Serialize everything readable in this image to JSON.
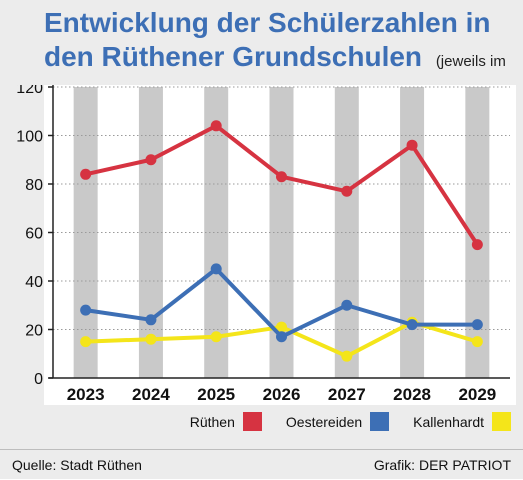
{
  "title": "Entwicklung der Schülerzahlen in den Rüthener Grundschulen",
  "subtitle": "(jeweils im August)",
  "footer": {
    "source": "Quelle: Stadt Rüthen",
    "credit": "Grafik: DER PATRIOT"
  },
  "chart_data": {
    "type": "line",
    "title": "Entwicklung der Schülerzahlen in den Rüthener Grundschulen",
    "subtitle": "(jeweils im August)",
    "xlabel": "",
    "ylabel": "",
    "categories": [
      "2023",
      "2024",
      "2025",
      "2026",
      "2027",
      "2028",
      "2029"
    ],
    "ylim": [
      0,
      120
    ],
    "yticks": [
      0,
      20,
      40,
      60,
      80,
      100,
      120
    ],
    "grid": "horizontal dotted",
    "legend_position": "bottom-right",
    "series": [
      {
        "name": "Rüthen",
        "color": "#d63341",
        "values": [
          84,
          90,
          104,
          83,
          77,
          96,
          55
        ]
      },
      {
        "name": "Oestereiden",
        "color": "#3d6fb5",
        "values": [
          28,
          24,
          45,
          17,
          30,
          22,
          22
        ]
      },
      {
        "name": "Kallenhardt",
        "color": "#f4e51a",
        "values": [
          15,
          16,
          17,
          21,
          9,
          23,
          15
        ]
      }
    ]
  }
}
